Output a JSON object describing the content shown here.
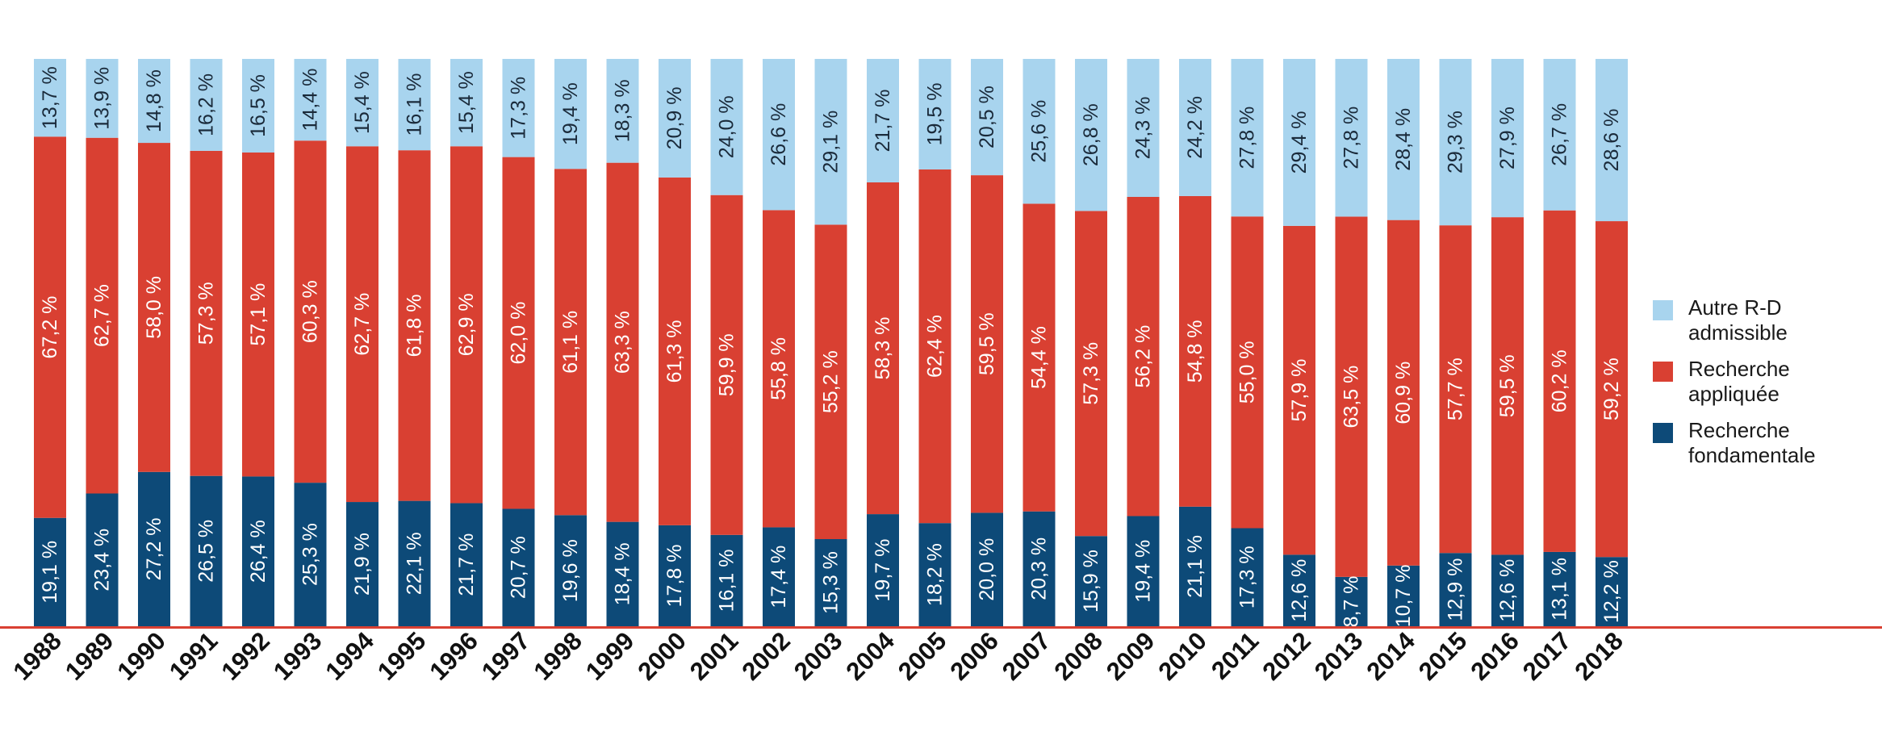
{
  "chart_data": {
    "type": "bar",
    "stacked": true,
    "normalized": true,
    "categories": [
      "1988",
      "1989",
      "1990",
      "1991",
      "1992",
      "1993",
      "1994",
      "1995",
      "1996",
      "1997",
      "1998",
      "1999",
      "2000",
      "2001",
      "2002",
      "2003",
      "2004",
      "2005",
      "2006",
      "2007",
      "2008",
      "2009",
      "2010",
      "2011",
      "2012",
      "2013",
      "2014",
      "2015",
      "2016",
      "2017",
      "2018"
    ],
    "series": [
      {
        "name": "Recherche fondamentale",
        "color": "#0d4a78",
        "values": [
          19.1,
          23.4,
          27.2,
          26.5,
          26.4,
          25.3,
          21.9,
          22.1,
          21.7,
          20.7,
          19.6,
          18.4,
          17.8,
          16.1,
          17.4,
          15.3,
          19.7,
          18.2,
          20.0,
          20.3,
          15.9,
          19.4,
          21.1,
          17.3,
          12.6,
          8.7,
          10.7,
          12.9,
          12.6,
          13.1,
          12.2
        ],
        "labels": [
          "19,1 %",
          "23,4 %",
          "27,2 %",
          "26,5 %",
          "26,4 %",
          "25,3 %",
          "21,9 %",
          "22,1 %",
          "21,7 %",
          "20,7 %",
          "19,6 %",
          "18,4 %",
          "17,8 %",
          "16,1 %",
          "17,4 %",
          "15,3 %",
          "19,7 %",
          "18,2 %",
          "20,0 %",
          "20,3 %",
          "15,9 %",
          "19,4 %",
          "21,1 %",
          "17,3 %",
          "12,6 %",
          "8,7 %",
          "10,7 %",
          "12,9 %",
          "12,6 %",
          "13,1 %",
          "12,2 %"
        ]
      },
      {
        "name": "Recherche appliquée",
        "color": "#d94032",
        "values": [
          67.2,
          62.7,
          58.0,
          57.3,
          57.1,
          60.3,
          62.7,
          61.8,
          62.9,
          62.0,
          61.1,
          63.3,
          61.3,
          59.9,
          55.8,
          55.2,
          58.3,
          62.4,
          59.5,
          54.4,
          57.3,
          56.2,
          54.8,
          55.0,
          57.9,
          63.5,
          60.9,
          57.7,
          59.5,
          60.2,
          59.2
        ],
        "labels": [
          "67,2 %",
          "62,7 %",
          "58,0 %",
          "57,3 %",
          "57,1 %",
          "60,3 %",
          "62,7 %",
          "61,8 %",
          "62,9 %",
          "62,0 %",
          "61,1 %",
          "63,3 %",
          "61,3 %",
          "59,9 %",
          "55,8 %",
          "55,2 %",
          "58,3 %",
          "62,4 %",
          "59,5 %",
          "54,4 %",
          "57,3 %",
          "56,2 %",
          "54,8 %",
          "55,0 %",
          "57,9 %",
          "63,5 %",
          "60,9 %",
          "57,7 %",
          "59,5 %",
          "60,2 %",
          "59,2 %"
        ]
      },
      {
        "name": "Autre R-D admissible",
        "color": "#a8d4ee",
        "values": [
          13.7,
          13.9,
          14.8,
          16.2,
          16.5,
          14.4,
          15.4,
          16.1,
          15.4,
          17.3,
          19.4,
          18.3,
          20.9,
          24.0,
          26.6,
          29.1,
          21.7,
          19.5,
          20.5,
          25.6,
          26.8,
          24.3,
          24.2,
          27.8,
          29.4,
          27.8,
          28.4,
          29.3,
          27.9,
          26.7,
          28.6
        ],
        "labels": [
          "13,7 %",
          "13,9 %",
          "14,8 %",
          "16,2 %",
          "16,5 %",
          "14,4 %",
          "15,4 %",
          "16,1 %",
          "15,4 %",
          "17,3 %",
          "19,4 %",
          "18,3 %",
          "20,9 %",
          "24,0 %",
          "26,6 %",
          "29,1 %",
          "21,7 %",
          "19,5 %",
          "20,5 %",
          "25,6 %",
          "26,8 %",
          "24,3 %",
          "24,2 %",
          "27,8 %",
          "29,4 %",
          "27,8 %",
          "28,4 %",
          "29,3 %",
          "27,9 %",
          "26,7 %",
          "28,6 %"
        ]
      }
    ],
    "legend": [
      {
        "label": "Autre R-D\nadmissible",
        "color": "#a8d4ee"
      },
      {
        "label": "Recherche\nappliquée",
        "color": "#d94032"
      },
      {
        "label": "Recherche\nfondamentale",
        "color": "#0d4a78"
      }
    ],
    "axis_color": "#d94032",
    "title": "",
    "xlabel": "",
    "ylabel": ""
  }
}
